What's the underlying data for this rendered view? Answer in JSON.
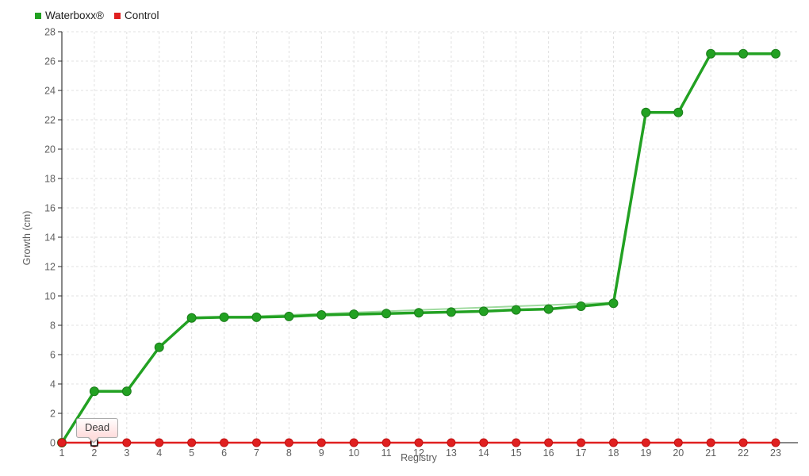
{
  "chart_data": {
    "type": "line",
    "x": [
      1,
      2,
      3,
      4,
      5,
      6,
      7,
      8,
      9,
      10,
      11,
      12,
      13,
      14,
      15,
      16,
      17,
      18,
      19,
      20,
      21,
      22,
      23
    ],
    "series": [
      {
        "name": "Waterboxx®",
        "color": "#22a122",
        "point_edge_color": "#1a7d1a",
        "values": [
          0,
          3.5,
          3.5,
          6.5,
          8.5,
          8.55,
          8.55,
          8.6,
          8.7,
          8.75,
          8.8,
          8.85,
          8.9,
          8.95,
          9.05,
          9.1,
          9.3,
          9.5,
          22.5,
          22.5,
          26.5,
          26.5,
          26.5
        ]
      },
      {
        "name": "Control",
        "color": "#e02020",
        "point_edge_color": "#c01212",
        "values": [
          0,
          0,
          0,
          0,
          0,
          0,
          0,
          0,
          0,
          0,
          0,
          0,
          0,
          0,
          0,
          0,
          0,
          0,
          0,
          0,
          0,
          0,
          0
        ]
      }
    ],
    "trend_overlay": {
      "color": "#8fd48f",
      "from": [
        5,
        8.45
      ],
      "to": [
        18,
        9.55
      ]
    },
    "title": "",
    "xlabel": "Registry",
    "ylabel": "Growth (cm)",
    "xticks": [
      1,
      2,
      3,
      4,
      5,
      6,
      7,
      8,
      9,
      10,
      11,
      12,
      13,
      14,
      15,
      16,
      17,
      18,
      19,
      20,
      21,
      22,
      23
    ],
    "yticks": [
      0,
      2,
      4,
      6,
      8,
      10,
      12,
      14,
      16,
      18,
      20,
      22,
      24,
      26,
      28
    ],
    "xlim": [
      1,
      23.73
    ],
    "ylim": [
      0,
      28
    ],
    "grid": true,
    "legend_position": "top-left",
    "annotations": [
      {
        "series": "Control",
        "x": 2,
        "y": 0,
        "text": "Dead"
      }
    ],
    "highlight": {
      "series": "Control",
      "x": 2,
      "y": 0,
      "marker": "white-square"
    }
  },
  "colors": {
    "grid": "#e0e0e0",
    "axis": "#101010",
    "tick_text": "#5f5f5f",
    "tooltip_border": "#ababab",
    "tooltip_bg_bottom": "#ffdcdc"
  }
}
